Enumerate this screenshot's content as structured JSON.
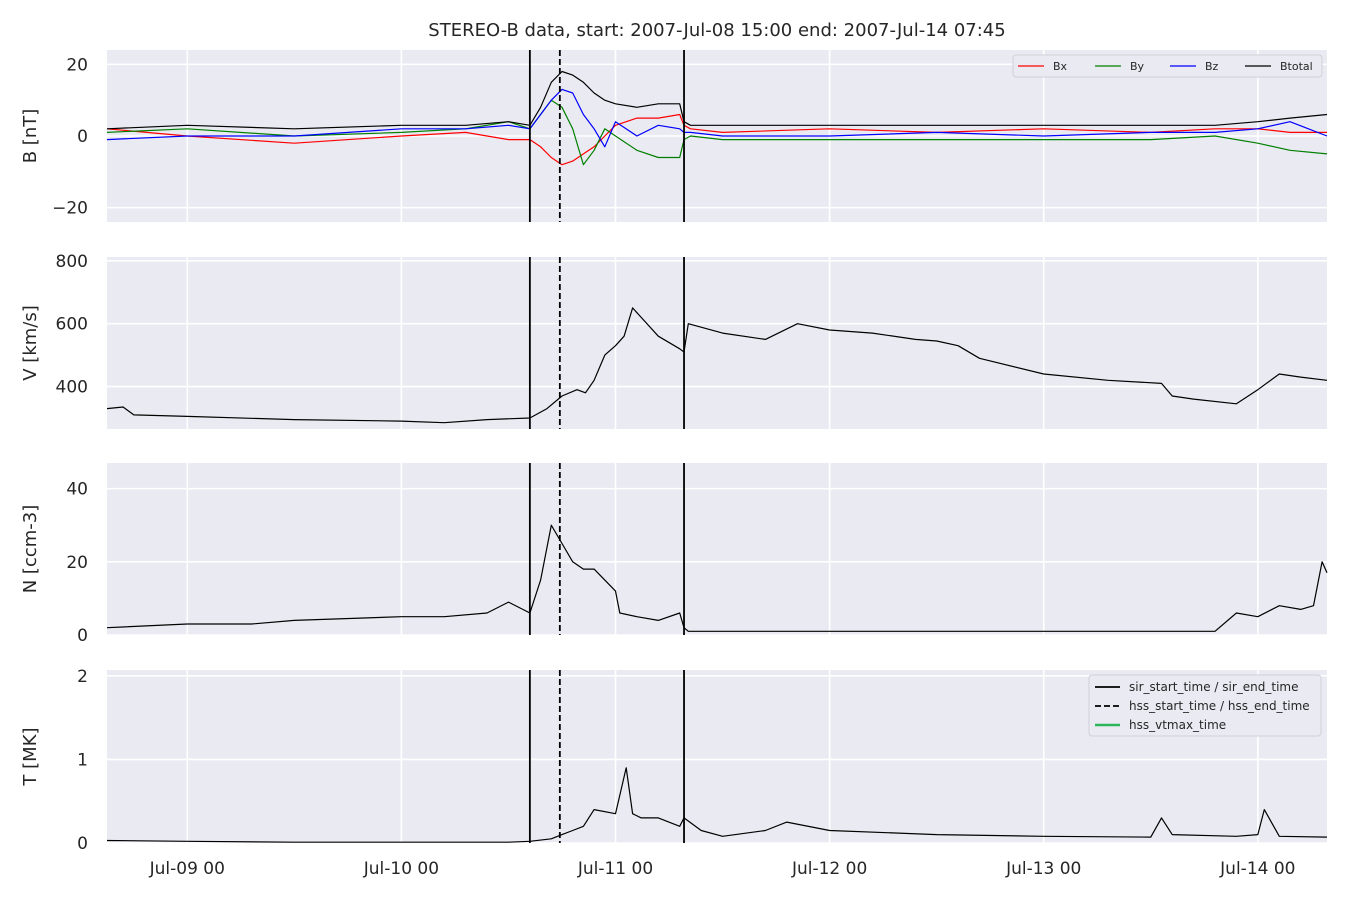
{
  "title": "STEREO-B data, start: 2007-Jul-08 15:00  end: 2007-Jul-14 07:45",
  "x_axis": {
    "ticks": [
      "Jul-09 00",
      "Jul-10 00",
      "Jul-11 00",
      "Jul-12 00",
      "Jul-13 00",
      "Jul-14 00"
    ],
    "tick_values": [
      9.0,
      10.0,
      11.0,
      12.0,
      13.0,
      14.0
    ],
    "range": [
      8.625,
      14.323
    ]
  },
  "event_lines": {
    "sir_start": 10.6,
    "hss_start": 10.74,
    "sir_end": 11.32
  },
  "legend_b": [
    "Bx",
    "By",
    "Bz",
    "Btotal"
  ],
  "legend_t": [
    "sir_start_time / sir_end_time",
    "hss_start_time / hss_end_time",
    "hss_vtmax_time"
  ],
  "colors": {
    "bg": "#EAEAF2",
    "grid": "#FFFFFF",
    "bx": "#FF0000",
    "by": "#008000",
    "bz": "#0000FF",
    "btotal": "#000000",
    "vtmax": "#2CB55A"
  },
  "chart_data": [
    {
      "type": "line",
      "ylabel": "B [nT]",
      "ylim": [
        -24,
        24
      ],
      "yticks": [
        -20,
        0,
        20
      ],
      "ytick_labels": [
        "−20",
        "0",
        "20"
      ],
      "legend": "top-right",
      "grid": true,
      "x": [
        8.625,
        9.0,
        9.5,
        10.0,
        10.3,
        10.5,
        10.6,
        10.65,
        10.7,
        10.75,
        10.8,
        10.85,
        10.9,
        10.95,
        11.0,
        11.1,
        11.2,
        11.3,
        11.32,
        11.35,
        11.5,
        12.0,
        12.5,
        13.0,
        13.5,
        13.8,
        14.0,
        14.15,
        14.323
      ],
      "series": [
        {
          "name": "Bx",
          "values": [
            2,
            0,
            -2,
            0,
            1,
            -1,
            -1,
            -3,
            -6,
            -8,
            -7,
            -5,
            -3,
            0,
            3,
            5,
            5,
            6,
            3,
            2,
            1,
            2,
            1,
            2,
            1,
            2,
            2,
            1,
            1
          ]
        },
        {
          "name": "By",
          "values": [
            1,
            2,
            0,
            1,
            2,
            4,
            2,
            6,
            10,
            8,
            2,
            -8,
            -4,
            2,
            0,
            -4,
            -6,
            -6,
            -1,
            0,
            -1,
            -1,
            -1,
            -1,
            -1,
            0,
            -2,
            -4,
            -5
          ]
        },
        {
          "name": "Bz",
          "values": [
            -1,
            0,
            0,
            2,
            2,
            3,
            2,
            6,
            10,
            13,
            12,
            6,
            2,
            -3,
            4,
            0,
            3,
            2,
            1,
            1,
            0,
            0,
            1,
            0,
            1,
            1,
            2,
            4,
            0
          ]
        },
        {
          "name": "Btotal",
          "values": [
            2,
            3,
            2,
            3,
            3,
            4,
            3,
            8,
            15,
            18,
            17,
            15,
            12,
            10,
            9,
            8,
            9,
            9,
            4,
            3,
            3,
            3,
            3,
            3,
            3,
            3,
            4,
            5,
            6
          ]
        }
      ]
    },
    {
      "type": "line",
      "ylabel": "V [km/s]",
      "ylim": [
        265,
        812
      ],
      "yticks": [
        400,
        600,
        800
      ],
      "ytick_labels": [
        "400",
        "600",
        "800"
      ],
      "grid": true,
      "x": [
        8.625,
        8.7,
        8.75,
        9.0,
        9.5,
        10.0,
        10.2,
        10.4,
        10.6,
        10.68,
        10.75,
        10.82,
        10.86,
        10.9,
        10.95,
        11.0,
        11.04,
        11.08,
        11.12,
        11.2,
        11.3,
        11.32,
        11.34,
        11.5,
        11.7,
        11.85,
        12.0,
        12.2,
        12.4,
        12.5,
        12.6,
        12.7,
        13.0,
        13.3,
        13.55,
        13.6,
        13.7,
        13.9,
        14.0,
        14.1,
        14.2,
        14.323
      ],
      "series": [
        {
          "name": "",
          "values": [
            330,
            335,
            310,
            305,
            295,
            290,
            285,
            295,
            300,
            330,
            370,
            390,
            380,
            420,
            500,
            530,
            560,
            650,
            620,
            560,
            520,
            510,
            600,
            570,
            550,
            600,
            580,
            570,
            550,
            545,
            530,
            490,
            440,
            420,
            410,
            370,
            360,
            345,
            390,
            440,
            430,
            420
          ]
        }
      ]
    },
    {
      "type": "line",
      "ylabel": "N [ccm-3]",
      "ylim": [
        0,
        47
      ],
      "yticks": [
        0,
        20,
        40
      ],
      "ytick_labels": [
        "0",
        "20",
        "40"
      ],
      "grid": true,
      "x": [
        8.625,
        9.0,
        9.3,
        9.5,
        10.0,
        10.2,
        10.4,
        10.5,
        10.6,
        10.65,
        10.7,
        10.75,
        10.8,
        10.85,
        10.9,
        10.95,
        11.0,
        11.02,
        11.1,
        11.2,
        11.3,
        11.32,
        11.34,
        12.0,
        12.5,
        13.0,
        13.5,
        13.8,
        13.9,
        14.0,
        14.1,
        14.2,
        14.26,
        14.3,
        14.323
      ],
      "series": [
        {
          "name": "",
          "values": [
            2,
            3,
            3,
            4,
            5,
            5,
            6,
            9,
            6,
            15,
            30,
            25,
            20,
            18,
            18,
            15,
            12,
            6,
            5,
            4,
            6,
            2,
            1,
            1,
            1,
            1,
            1,
            1,
            6,
            5,
            8,
            7,
            8,
            20,
            17
          ]
        }
      ]
    },
    {
      "type": "line",
      "ylabel": "T [MK]",
      "ylim": [
        0,
        2.07
      ],
      "yticks": [
        0,
        1,
        2
      ],
      "ytick_labels": [
        "0",
        "1",
        "2"
      ],
      "legend": "top-right",
      "grid": true,
      "x": [
        8.625,
        9.0,
        9.5,
        10.0,
        10.5,
        10.6,
        10.7,
        10.75,
        10.8,
        10.85,
        10.9,
        11.0,
        11.05,
        11.08,
        11.12,
        11.2,
        11.3,
        11.32,
        11.4,
        11.5,
        11.7,
        11.8,
        12.0,
        12.5,
        13.0,
        13.5,
        13.55,
        13.6,
        13.9,
        14.0,
        14.03,
        14.1,
        14.323
      ],
      "series": [
        {
          "name": "",
          "values": [
            0.03,
            0.02,
            0.01,
            0.01,
            0.01,
            0.02,
            0.05,
            0.1,
            0.15,
            0.2,
            0.4,
            0.35,
            0.9,
            0.35,
            0.3,
            0.3,
            0.2,
            0.3,
            0.15,
            0.08,
            0.15,
            0.25,
            0.15,
            0.1,
            0.08,
            0.07,
            0.3,
            0.1,
            0.08,
            0.1,
            0.4,
            0.08,
            0.07
          ]
        }
      ]
    }
  ]
}
